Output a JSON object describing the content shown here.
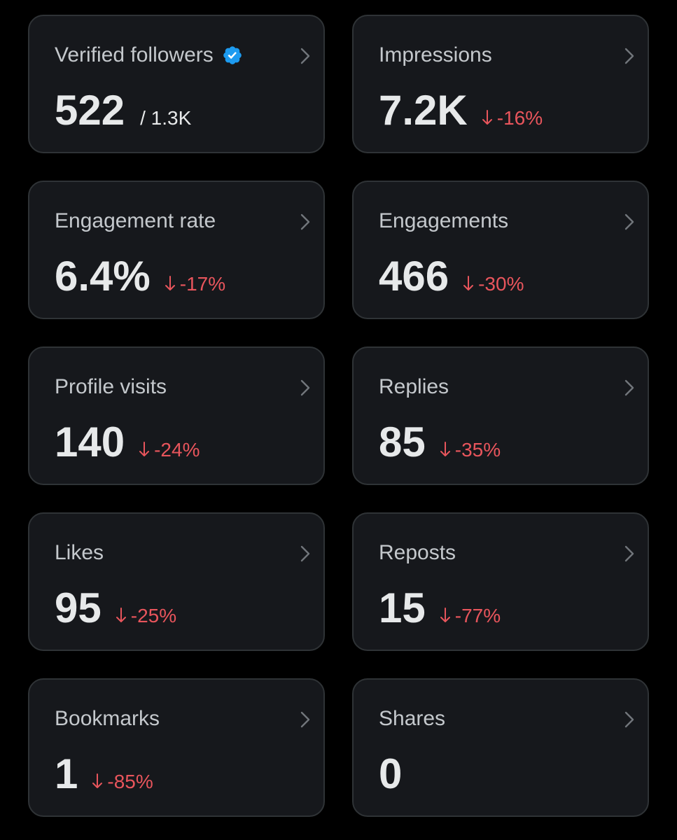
{
  "colors": {
    "background": "#000000",
    "card_background": "#16181c",
    "card_border": "#2f3336",
    "title_text": "#c4c8cc",
    "value_text": "#e7e9ea",
    "negative_change": "#e8555c",
    "verified_badge": "#1d9bf0"
  },
  "cards": [
    {
      "title": "Verified followers",
      "value": "522",
      "total": "/ 1.3K",
      "icon": "verified-badge-icon"
    },
    {
      "title": "Impressions",
      "value": "7.2K",
      "change": "-16%"
    },
    {
      "title": "Engagement rate",
      "value": "6.4%",
      "change": "-17%"
    },
    {
      "title": "Engagements",
      "value": "466",
      "change": "-30%"
    },
    {
      "title": "Profile visits",
      "value": "140",
      "change": "-24%"
    },
    {
      "title": "Replies",
      "value": "85",
      "change": "-35%"
    },
    {
      "title": "Likes",
      "value": "95",
      "change": "-25%"
    },
    {
      "title": "Reposts",
      "value": "15",
      "change": "-77%"
    },
    {
      "title": "Bookmarks",
      "value": "1",
      "change": "-85%"
    },
    {
      "title": "Shares",
      "value": "0"
    }
  ]
}
